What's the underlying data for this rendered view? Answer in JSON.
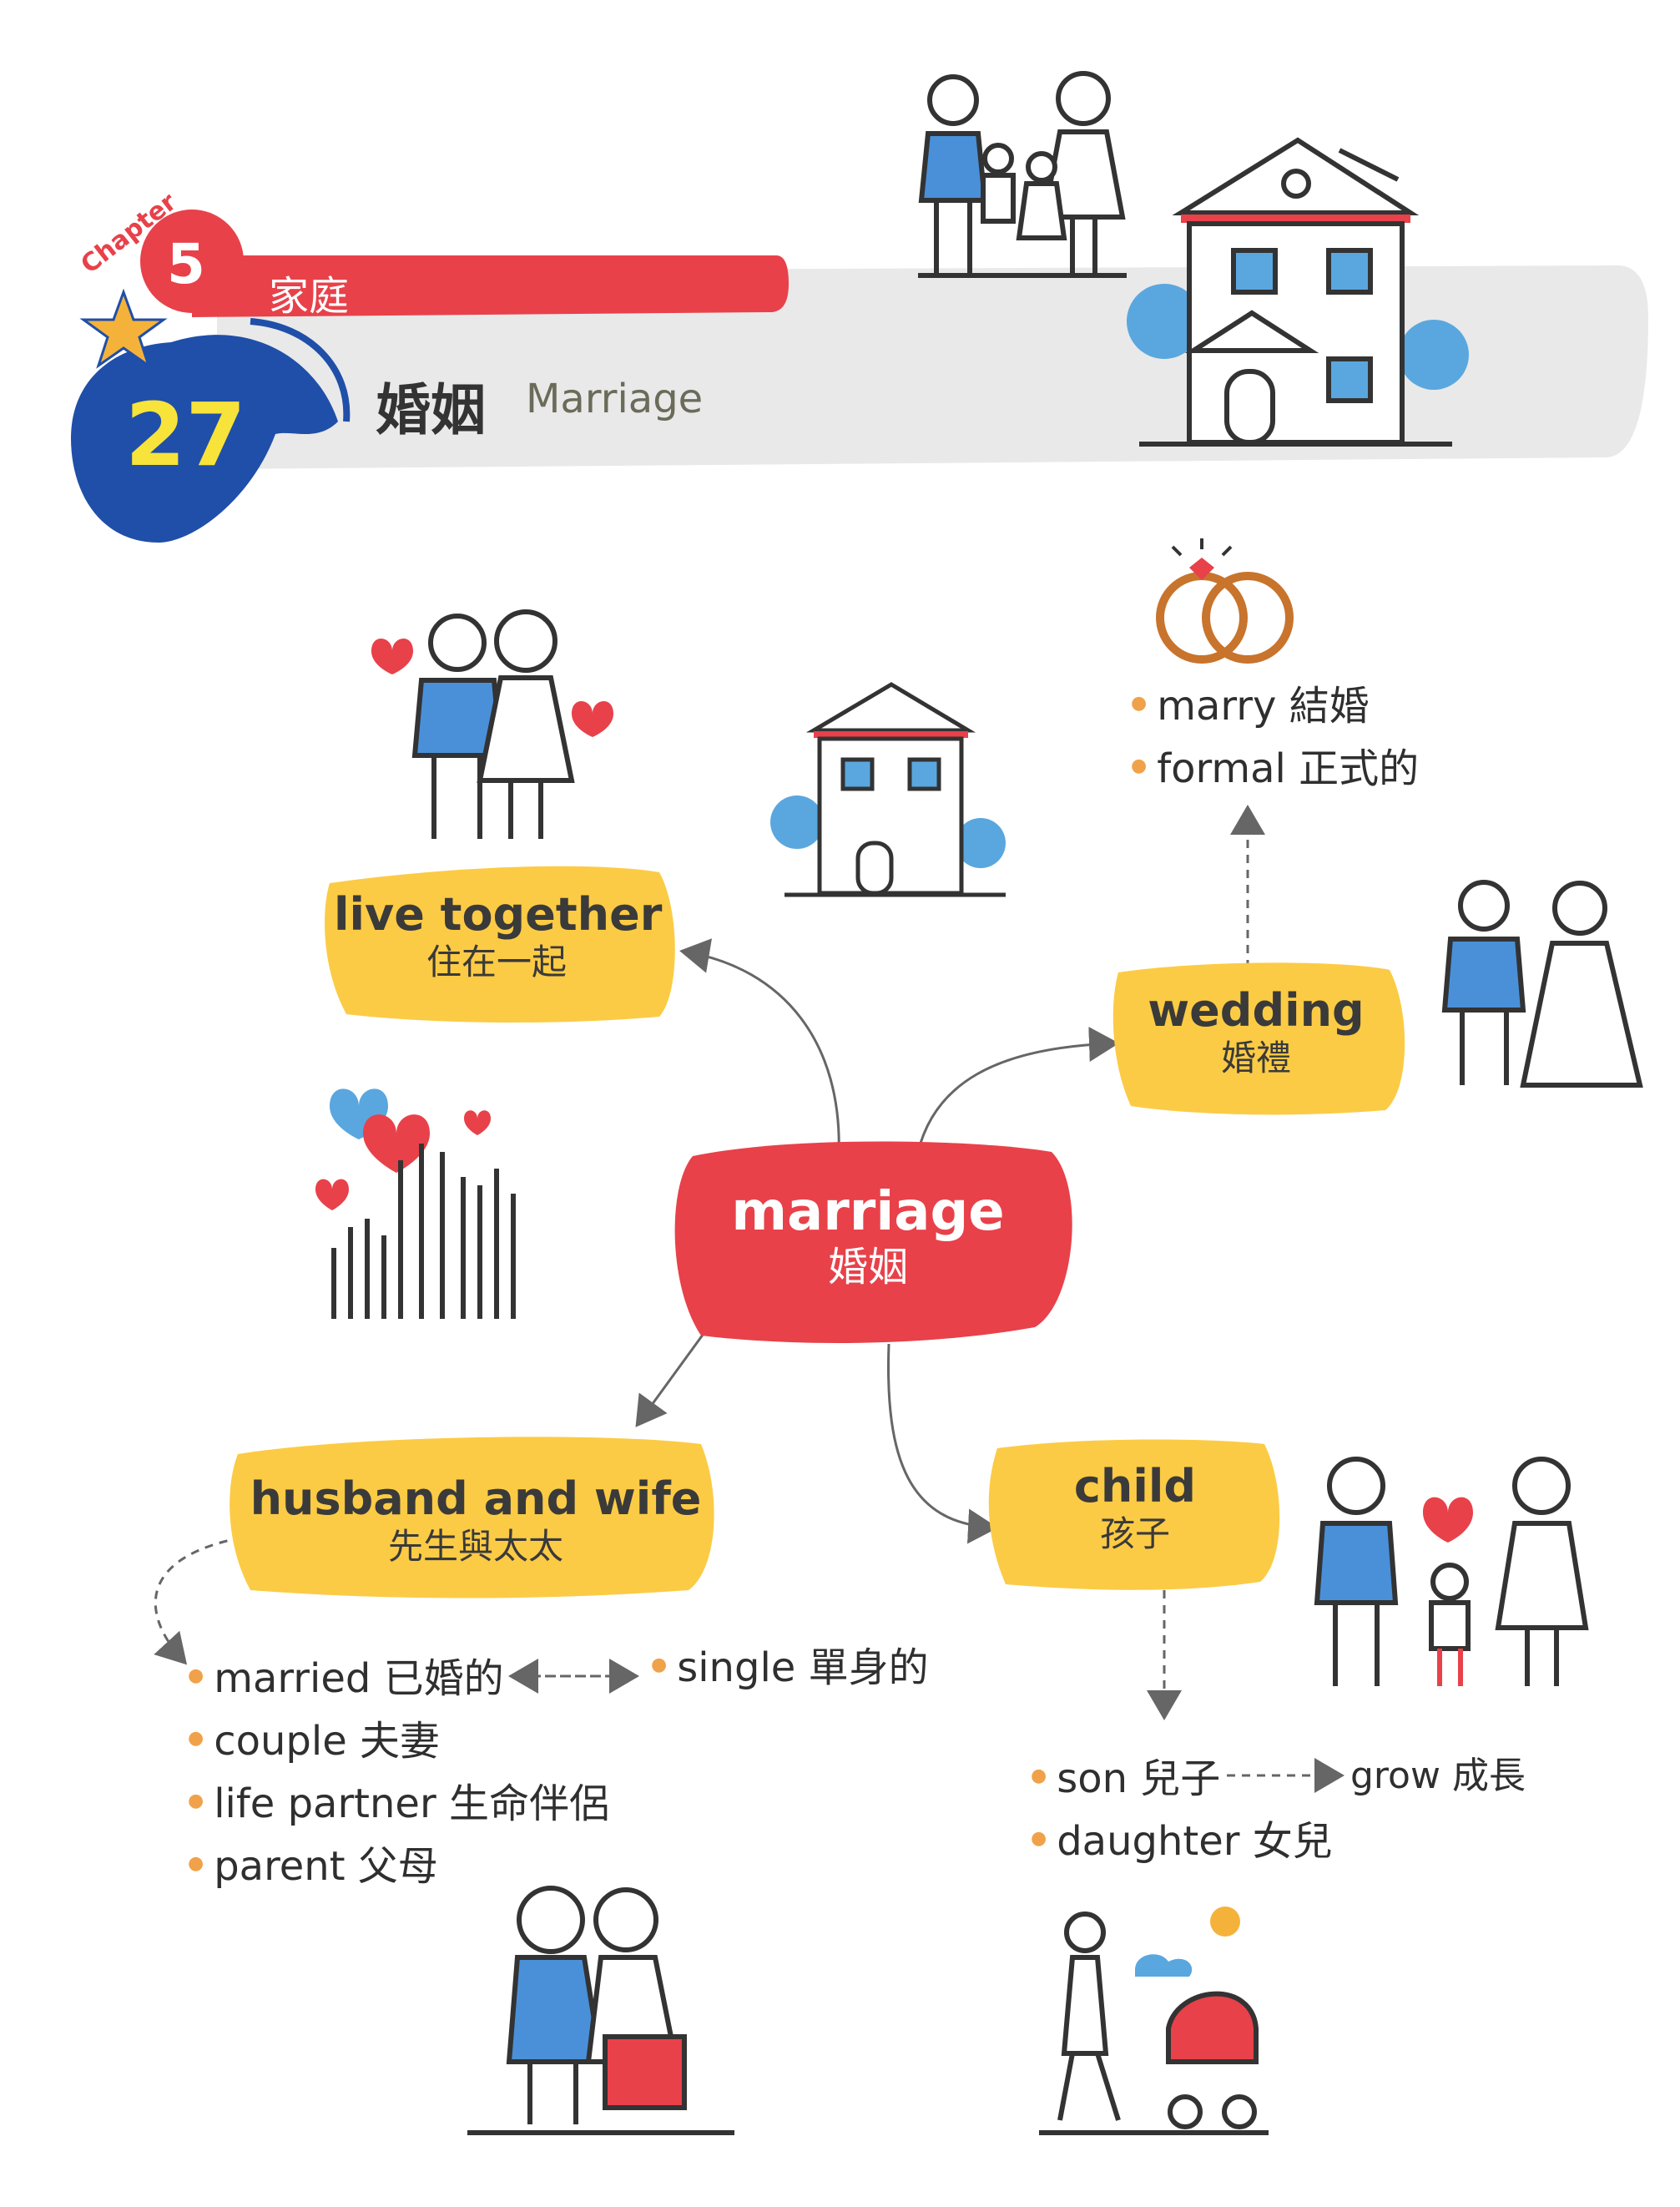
{
  "header": {
    "chapter_word": "Chapter",
    "chapter_number": "5",
    "chapter_topic": "家庭",
    "lesson_number": "27",
    "lesson_title_zh": "婚姻",
    "lesson_title_en": "Marriage"
  },
  "center": {
    "en": "marriage",
    "zh": "婚姻"
  },
  "nodes": {
    "live_together": {
      "en": "live together",
      "zh": "住在一起"
    },
    "wedding": {
      "en": "wedding",
      "zh": "婚禮"
    },
    "husband_wife": {
      "en": "husband and wife",
      "zh": "先生與太太"
    },
    "child": {
      "en": "child",
      "zh": "孩子"
    }
  },
  "wedding_list": [
    "marry 結婚",
    "formal 正式的"
  ],
  "husband_wife_list": [
    "married 已婚的",
    "couple 夫妻",
    "life partner 生命伴侶",
    "parent 父母"
  ],
  "single_item": "single 單身的",
  "child_list": [
    "son 兒子",
    "daughter 女兒"
  ],
  "grow_item": "grow 成長",
  "colors": {
    "red": "#e8414a",
    "blue": "#1f4fa8",
    "light_blue": "#5aa7df",
    "yellow": "#fccb45",
    "gray_band": "#e9e9e9",
    "star": "#f5b23a",
    "bullet": "#f0a24a",
    "ring": "#c8742c"
  },
  "icons": [
    "family-icon",
    "house-icon",
    "couple-icon",
    "rings-icon",
    "bride-groom-icon",
    "raised-hands-hearts-icon",
    "family-child-icon",
    "elderly-couple-icon",
    "mother-stroller-icon"
  ]
}
